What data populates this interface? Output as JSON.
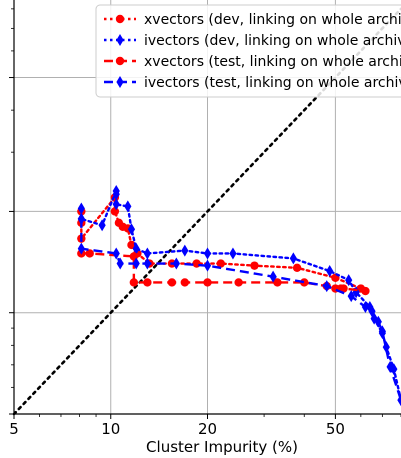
{
  "chart_data": {
    "type": "line",
    "xlabel": "Cluster Impurity (%)",
    "ylabel": "",
    "x_scale": "log",
    "y_scale": "log",
    "xlim": [
      5,
      80
    ],
    "ylim": [
      5,
      85
    ],
    "x_ticks": [
      5,
      10,
      20,
      50
    ],
    "x_tick_labels": [
      "5",
      "10",
      "20",
      "50"
    ],
    "y_ticks": [
      5,
      10,
      20,
      50
    ],
    "grid": true,
    "legend_position": "top-right",
    "diagonal": {
      "style": "dotted",
      "color": "#000000",
      "from": [
        5,
        5
      ],
      "to": [
        80,
        80
      ]
    },
    "series": [
      {
        "name": "xvectors (dev, linking on whole archive)",
        "color": "#ff0000",
        "line": "dotted",
        "marker": "circle",
        "x": [
          8.1,
          8.1,
          8.1,
          10.3,
          10.3,
          10.6,
          10.9,
          11.3,
          11.6,
          12.1,
          13.2,
          15.5,
          18.5,
          22.0,
          28.0,
          38.0,
          50.0,
          60.0
        ],
        "y": [
          20.0,
          18.5,
          16.6,
          22.0,
          20.0,
          18.5,
          18.0,
          17.8,
          15.9,
          15.0,
          14.0,
          14.0,
          14.0,
          14.0,
          13.8,
          13.6,
          12.7,
          11.8
        ]
      },
      {
        "name": "ivectors (dev, linking on whole archive)",
        "color": "#0000ff",
        "line": "dotted",
        "marker": "diamond",
        "x": [
          8.1,
          8.1,
          9.4,
          10.4,
          10.4,
          10.4,
          11.3,
          11.6,
          12.0,
          13.0,
          17.0,
          20.0,
          24.0,
          37.0,
          48.0,
          55.0,
          58.0,
          64.0,
          66.0,
          70.0,
          72.0,
          76.0,
          80.0
        ],
        "y": [
          20.4,
          19.0,
          18.2,
          23.0,
          22.5,
          21.0,
          20.7,
          17.7,
          15.5,
          15.0,
          15.3,
          15.0,
          15.0,
          14.5,
          13.3,
          12.5,
          11.5,
          10.4,
          9.6,
          8.7,
          7.9,
          6.8,
          5.5
        ]
      },
      {
        "name": "xvectors (test, linking on whole archive)",
        "color": "#ff0000",
        "line": "dashed",
        "marker": "circle",
        "x": [
          8.1,
          8.6,
          11.8,
          11.8,
          13.0,
          15.5,
          17.0,
          20.0,
          25.0,
          33.0,
          40.0,
          47.0,
          50.0,
          52.0,
          53.0,
          62.0
        ],
        "y": [
          15.0,
          15.0,
          14.7,
          12.3,
          12.3,
          12.3,
          12.3,
          12.3,
          12.3,
          12.3,
          12.3,
          12.0,
          11.8,
          11.8,
          11.8,
          11.6
        ]
      },
      {
        "name": "ivectors (test, linking on whole archive)",
        "color": "#0000ff",
        "line": "dashed",
        "marker": "diamond",
        "x": [
          8.1,
          8.1,
          10.4,
          10.7,
          12.0,
          13.0,
          16.0,
          20.0,
          32.0,
          47.0,
          56.0,
          62.0,
          65.0,
          68.0,
          70.0,
          74.0,
          80.0
        ],
        "y": [
          19.0,
          15.5,
          15.0,
          14.0,
          14.0,
          14.0,
          14.0,
          13.8,
          12.8,
          12.0,
          11.2,
          10.4,
          10.1,
          9.4,
          8.8,
          6.9,
          5.5
        ]
      }
    ]
  }
}
